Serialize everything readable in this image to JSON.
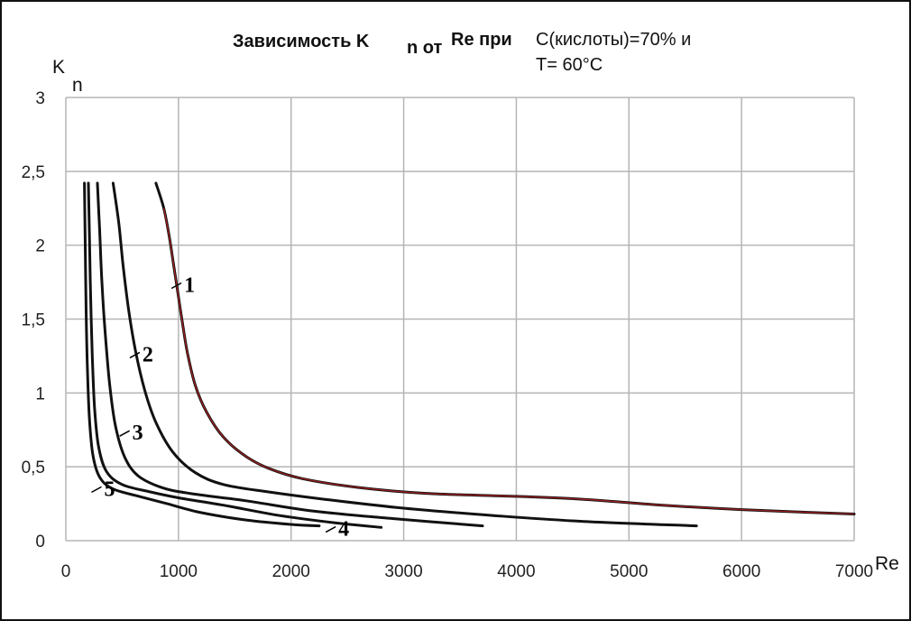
{
  "title": {
    "part_bold_1": "Зависимость K",
    "part_bold_sub": "n от",
    "part_bold_2": "Re при",
    "part_normal_1": "C(кислоты)=70% и",
    "part_normal_2": "T= 60°C"
  },
  "colors": {
    "grid": "#b5b5b5",
    "curve": "#111111",
    "curve1_overlay": "#a02020"
  },
  "chart_data": {
    "type": "line",
    "title": "Зависимость K n от Re при C(кислоты)=70% и T= 60°C",
    "xlabel": "Re",
    "ylabel_main": "K",
    "ylabel_sub": "n",
    "xlim": [
      0,
      7000
    ],
    "ylim": [
      0,
      3
    ],
    "xticks": [
      0,
      1000,
      2000,
      3000,
      4000,
      5000,
      6000,
      7000
    ],
    "yticks": [
      0,
      0.5,
      1,
      1.5,
      2,
      2.5,
      3
    ],
    "ytick_labels": [
      "0",
      "0,5",
      "1",
      "1,5",
      "2",
      "2,5",
      "3"
    ],
    "grid": true,
    "series": [
      {
        "name": "1",
        "points": [
          [
            800,
            2.42
          ],
          [
            870,
            2.25
          ],
          [
            920,
            2.05
          ],
          [
            960,
            1.85
          ],
          [
            1000,
            1.65
          ],
          [
            1040,
            1.45
          ],
          [
            1080,
            1.27
          ],
          [
            1150,
            1.05
          ],
          [
            1250,
            0.87
          ],
          [
            1400,
            0.7
          ],
          [
            1600,
            0.57
          ],
          [
            1800,
            0.49
          ],
          [
            2100,
            0.42
          ],
          [
            2600,
            0.36
          ],
          [
            3200,
            0.32
          ],
          [
            4000,
            0.3
          ],
          [
            4600,
            0.28
          ],
          [
            5300,
            0.24
          ],
          [
            6000,
            0.21
          ],
          [
            7000,
            0.18
          ]
        ]
      },
      {
        "name": "2",
        "points": [
          [
            420,
            2.42
          ],
          [
            470,
            2.15
          ],
          [
            510,
            1.85
          ],
          [
            560,
            1.55
          ],
          [
            620,
            1.28
          ],
          [
            700,
            1.02
          ],
          [
            800,
            0.8
          ],
          [
            950,
            0.6
          ],
          [
            1150,
            0.46
          ],
          [
            1400,
            0.38
          ],
          [
            1800,
            0.33
          ],
          [
            2300,
            0.28
          ],
          [
            3000,
            0.22
          ],
          [
            3800,
            0.17
          ],
          [
            4600,
            0.13
          ],
          [
            5600,
            0.1
          ]
        ]
      },
      {
        "name": "3",
        "points": [
          [
            280,
            2.42
          ],
          [
            300,
            2.1
          ],
          [
            320,
            1.75
          ],
          [
            350,
            1.4
          ],
          [
            390,
            1.05
          ],
          [
            440,
            0.78
          ],
          [
            520,
            0.57
          ],
          [
            640,
            0.44
          ],
          [
            850,
            0.36
          ],
          [
            1100,
            0.32
          ],
          [
            1600,
            0.27
          ],
          [
            2200,
            0.2
          ],
          [
            2900,
            0.15
          ],
          [
            3700,
            0.1
          ]
        ]
      },
      {
        "name": "4",
        "points": [
          [
            200,
            2.42
          ],
          [
            210,
            2.05
          ],
          [
            220,
            1.65
          ],
          [
            235,
            1.25
          ],
          [
            255,
            0.9
          ],
          [
            290,
            0.64
          ],
          [
            360,
            0.47
          ],
          [
            500,
            0.38
          ],
          [
            750,
            0.33
          ],
          [
            1000,
            0.29
          ],
          [
            1400,
            0.24
          ],
          [
            1900,
            0.17
          ],
          [
            2400,
            0.12
          ],
          [
            2800,
            0.09
          ]
        ]
      },
      {
        "name": "5",
        "points": [
          [
            165,
            2.42
          ],
          [
            172,
            2.0
          ],
          [
            180,
            1.55
          ],
          [
            192,
            1.15
          ],
          [
            210,
            0.82
          ],
          [
            240,
            0.58
          ],
          [
            300,
            0.43
          ],
          [
            420,
            0.35
          ],
          [
            650,
            0.3
          ],
          [
            900,
            0.25
          ],
          [
            1200,
            0.19
          ],
          [
            1600,
            0.14
          ],
          [
            2000,
            0.11
          ],
          [
            2250,
            0.1
          ]
        ]
      }
    ],
    "curve_labels": [
      {
        "text": "1",
        "x": 1050,
        "y": 1.72
      },
      {
        "text": "2",
        "x": 680,
        "y": 1.25
      },
      {
        "text": "3",
        "x": 590,
        "y": 0.72
      },
      {
        "text": "4",
        "x": 2420,
        "y": 0.07
      },
      {
        "text": "5",
        "x": 340,
        "y": 0.34
      }
    ]
  }
}
